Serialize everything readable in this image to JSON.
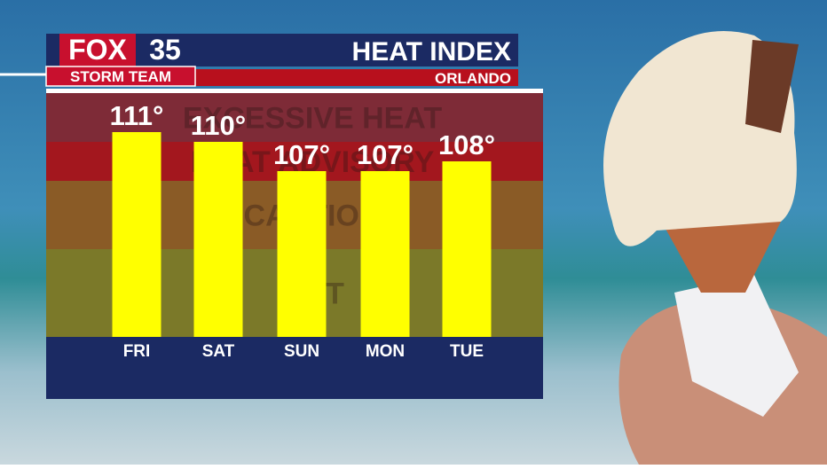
{
  "brand": {
    "station": "FOX",
    "channel": "35",
    "team": "STORM TEAM"
  },
  "chart_data": {
    "type": "bar",
    "title": "HEAT INDEX",
    "subtitle": "ORLANDO",
    "categories": [
      "FRI",
      "SAT",
      "SUN",
      "MON",
      "TUE"
    ],
    "values": [
      111,
      110,
      107,
      107,
      108
    ],
    "value_labels": [
      "111°",
      "110°",
      "107°",
      "107°",
      "108°"
    ],
    "color": "#ffff00",
    "ylim": [
      90,
      115
    ],
    "bands": [
      {
        "label": "EXCESSIVE HEAT",
        "from": 110,
        "to": 115,
        "color": "#7e2b37"
      },
      {
        "label": "HEAT ADVISORY",
        "from": 106,
        "to": 110,
        "color": "#a3171e"
      },
      {
        "label": "CAUTION",
        "from": 99,
        "to": 106,
        "color": "#8a5b26"
      },
      {
        "label": "HOT",
        "from": 90,
        "to": 99,
        "color": "#7b7929"
      }
    ]
  }
}
